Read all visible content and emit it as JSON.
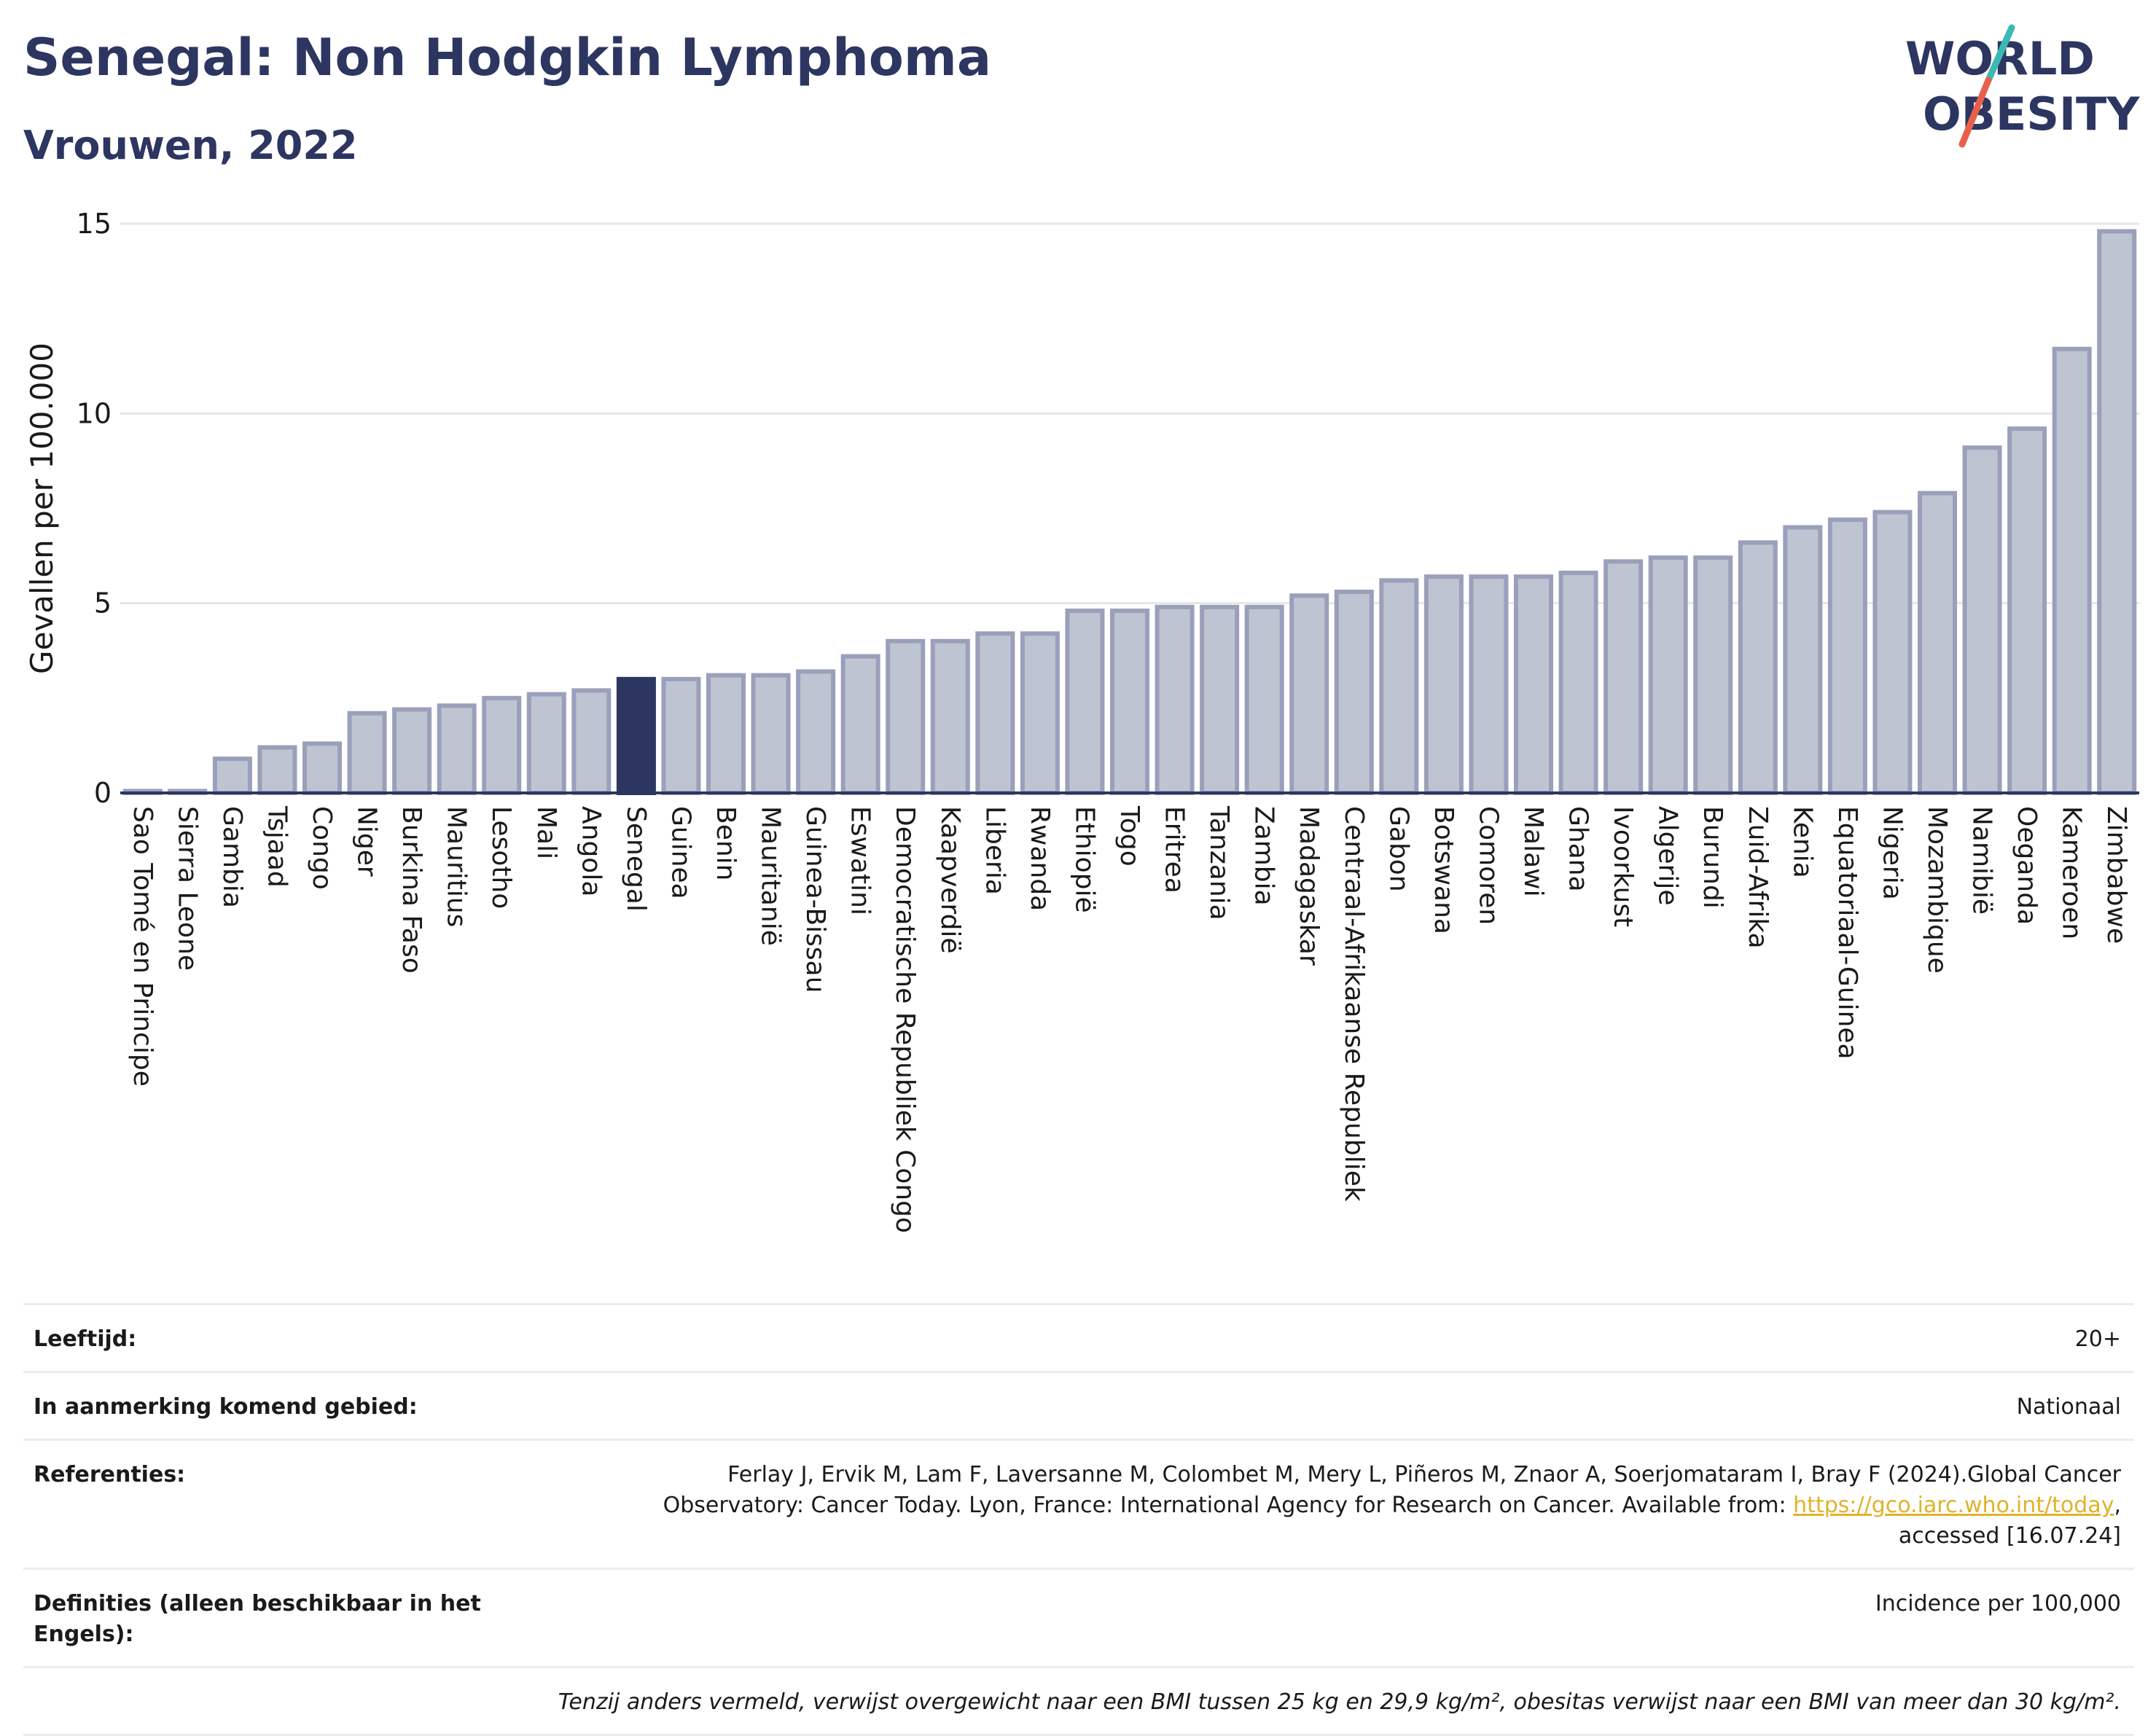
{
  "header": {
    "title": "Senegal: Non Hodgkin Lymphoma",
    "subtitle": "Vrouwen, 2022"
  },
  "logo": {
    "line1": "WORLD",
    "line2": "OBESITY",
    "colors": {
      "text": "#2d3561",
      "slash_teal": "#3cb8b5",
      "slash_red": "#e8604c"
    }
  },
  "colors": {
    "bar": "#bfc4d3",
    "bar_border": "#9aa0ba",
    "highlight": "#2d3561",
    "axis_text": "#1a1a1a",
    "grid": "#e6e6e6"
  },
  "chart_data": {
    "type": "bar",
    "ylabel": "Gevallen per 100.000",
    "xlabel": "",
    "ylim": [
      0,
      15
    ],
    "yticks": [
      0,
      5,
      10,
      15
    ],
    "grid": true,
    "highlight": "Senegal",
    "categories": [
      "Sao Tomé en Principe",
      "Sierra Leone",
      "Gambia",
      "Tsjaad",
      "Congo",
      "Niger",
      "Burkina Faso",
      "Mauritius",
      "Lesotho",
      "Mali",
      "Angola",
      "Senegal",
      "Guinea",
      "Benin",
      "Mauritanië",
      "Guinea-Bissau",
      "Eswatini",
      "Democratische Republiek Congo",
      "Kaapverdië",
      "Liberia",
      "Rwanda",
      "Ethiopië",
      "Togo",
      "Eritrea",
      "Tanzania",
      "Zambia",
      "Madagaskar",
      "Centraal-Afrikaanse Republiek",
      "Gabon",
      "Botswana",
      "Comoren",
      "Malawi",
      "Ghana",
      "Ivoorkust",
      "Algerije",
      "Burundi",
      "Zuid-Afrika",
      "Kenia",
      "Equatoriaal-Guinea",
      "Nigeria",
      "Mozambique",
      "Namibië",
      "Oeganda",
      "Kameroen",
      "Zimbabwe"
    ],
    "values": [
      0.05,
      0.05,
      0.9,
      1.2,
      1.3,
      2.1,
      2.2,
      2.3,
      2.5,
      2.6,
      2.7,
      3.0,
      3.0,
      3.1,
      3.1,
      3.2,
      3.6,
      4.0,
      4.0,
      4.2,
      4.2,
      4.8,
      4.8,
      4.9,
      4.9,
      4.9,
      5.2,
      5.3,
      5.6,
      5.7,
      5.7,
      5.7,
      5.8,
      6.1,
      6.2,
      6.2,
      6.6,
      7.0,
      7.2,
      7.4,
      7.9,
      9.1,
      9.6,
      11.7,
      14.8
    ]
  },
  "footer": {
    "age_label": "Leeftijd:",
    "age_value": "20+",
    "area_label": "In aanmerking komend gebied:",
    "area_value": "Nationaal",
    "ref_label": "Referenties:",
    "ref_text_1": "Ferlay J, Ervik M, Lam F, Laversanne M, Colombet M, Mery L, Piñeros M, Znaor A, Soerjomataram I, Bray F (2024).Global Cancer",
    "ref_text_2": "Observatory: Cancer Today. Lyon, France: International Agency for Research on Cancer. Available from: ",
    "ref_link": "https://gco.iarc.who.int/today",
    "ref_text_3": ",",
    "ref_text_4": "accessed [16.07.24]",
    "def_label": "Definities (alleen beschikbaar in het Engels):",
    "def_value": "Incidence per 100,000",
    "note": "Tenzij anders vermeld, verwijst overgewicht naar een BMI tussen 25 kg en 29,9 kg/m², obesitas verwijst naar een BMI van meer dan 30 kg/m²."
  }
}
